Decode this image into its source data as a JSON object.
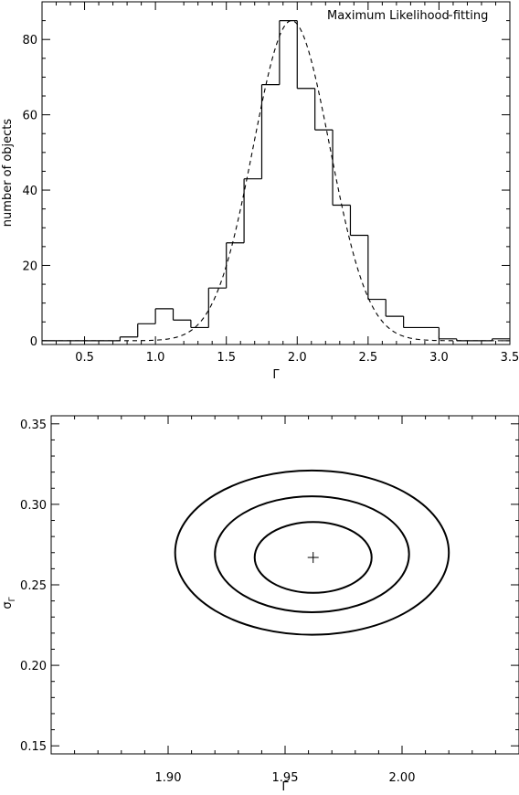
{
  "chart_data": [
    {
      "type": "histogram",
      "xlabel": "Γ",
      "ylabel": "number of objects",
      "xlim": [
        0.2,
        3.5
      ],
      "ylim": [
        -1,
        90
      ],
      "xticks": [
        0.5,
        1.0,
        1.5,
        2.0,
        2.5,
        3.0,
        3.5
      ],
      "xtick_labels": [
        "0.5",
        "1.0",
        "1.5",
        "2.0",
        "2.5",
        "3.0",
        "3.5"
      ],
      "yticks": [
        0,
        20,
        40,
        60,
        80
      ],
      "ytick_labels": [
        "0",
        "20",
        "40",
        "60",
        "80"
      ],
      "bin_width": 0.125,
      "bin_edges": [
        0.2,
        0.625,
        0.75,
        0.875,
        1.0,
        1.125,
        1.25,
        1.375,
        1.5,
        1.625,
        1.75,
        1.875,
        2.0,
        2.125,
        2.25,
        2.375,
        2.5,
        2.625,
        2.75,
        3.0,
        3.125,
        3.375,
        3.5
      ],
      "counts": [
        0,
        0,
        1,
        4.5,
        8.5,
        5.5,
        3.5,
        14,
        26,
        43,
        68,
        85,
        67,
        56,
        36,
        28,
        11,
        6.5,
        3.5,
        0.5,
        0,
        0.5
      ],
      "series": [
        {
          "name": "Maximum Likelihood fitting",
          "style": "dashed",
          "model": "gaussian",
          "mean": 1.96,
          "sigma": 0.27,
          "amplitude": 85
        }
      ],
      "legend": {
        "position": "top-right",
        "entries": [
          "Maximum Likelihood fitting"
        ]
      },
      "grid": false
    },
    {
      "type": "contour",
      "xlabel": "Γ",
      "ylabel": "σΓ",
      "xlim": [
        1.85,
        2.05
      ],
      "ylim": [
        0.145,
        0.355
      ],
      "xticks": [
        1.9,
        1.95,
        2.0
      ],
      "xtick_labels": [
        "1.90",
        "1.95",
        "2.00"
      ],
      "yticks": [
        0.15,
        0.2,
        0.25,
        0.3,
        0.35
      ],
      "ytick_labels": [
        "0.15",
        "0.20",
        "0.25",
        "0.30",
        "0.35"
      ],
      "best_fit": {
        "x": 1.962,
        "y": 0.267
      },
      "contours": [
        {
          "x_min": 1.937,
          "x_max": 1.987,
          "y_min": 0.245,
          "y_max": 0.289
        },
        {
          "x_min": 1.92,
          "x_max": 2.003,
          "y_min": 0.233,
          "y_max": 0.305
        },
        {
          "x_min": 1.903,
          "x_max": 2.02,
          "y_min": 0.219,
          "y_max": 0.321
        }
      ],
      "grid": false
    }
  ]
}
